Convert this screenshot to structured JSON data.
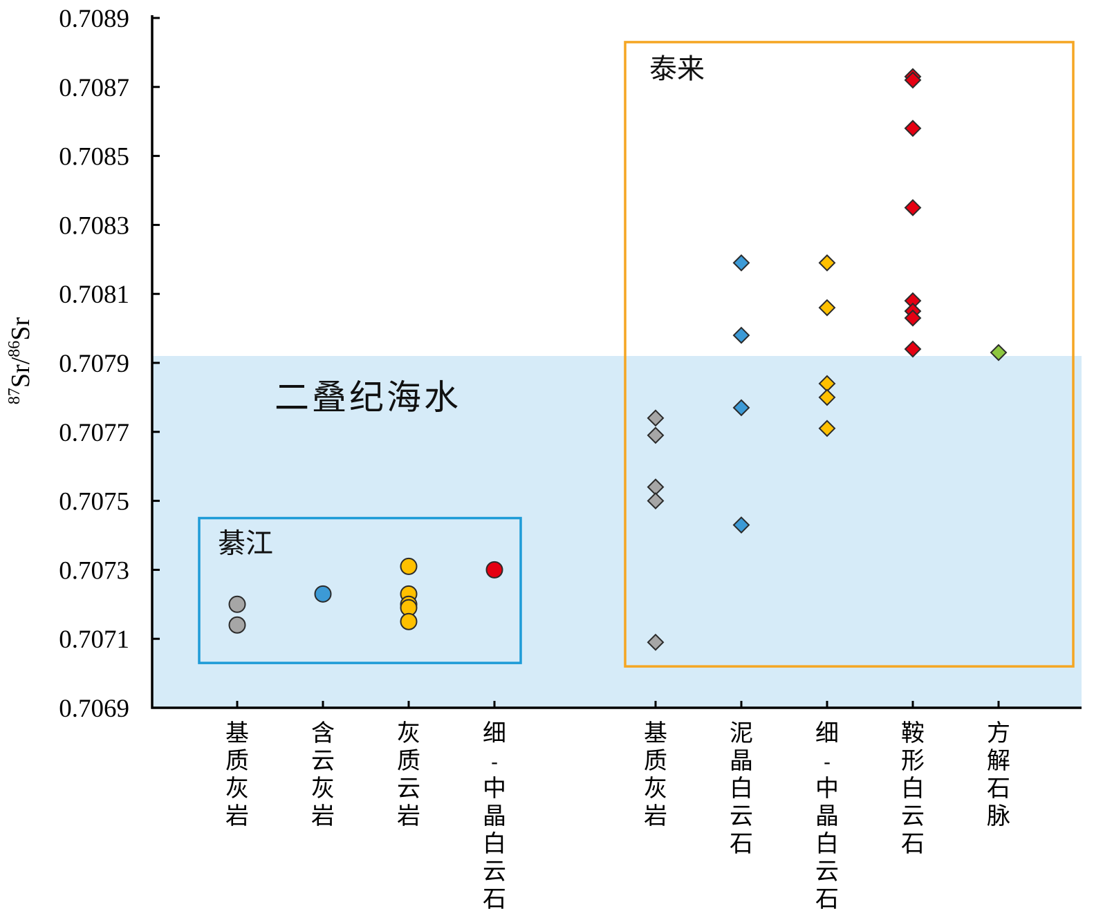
{
  "chart_data": {
    "type": "scatter",
    "ylabel": {
      "pre": "87",
      "mid": "Sr/",
      "sup2": "86",
      "post": "Sr"
    },
    "ylim": [
      0.7069,
      0.7089
    ],
    "yticks": [
      "0.7069",
      "0.7071",
      "0.7073",
      "0.7075",
      "0.7077",
      "0.7079",
      "0.7081",
      "0.7083",
      "0.7085",
      "0.7087",
      "0.7089"
    ],
    "categories": [
      {
        "label": "基质灰岩",
        "group": "綦江"
      },
      {
        "label": "含云灰岩",
        "group": "綦江"
      },
      {
        "label": "灰质云岩",
        "group": "綦江"
      },
      {
        "label": "细-中晶白云石",
        "group": "綦江"
      },
      {
        "label": "基质灰岩",
        "group": "泰来"
      },
      {
        "label": "泥晶白云石",
        "group": "泰来"
      },
      {
        "label": "细-中晶白云石",
        "group": "泰来"
      },
      {
        "label": "鞍形白云石",
        "group": "泰来"
      },
      {
        "label": "方解石脉",
        "group": "泰来"
      }
    ],
    "series": [
      {
        "category": 0,
        "marker": "circle",
        "color": "#a6a6a6",
        "values": [
          0.7072,
          0.70714
        ]
      },
      {
        "category": 1,
        "marker": "circle",
        "color": "#3c9ad6",
        "values": [
          0.70723
        ]
      },
      {
        "category": 2,
        "marker": "circle",
        "color": "#ffc000",
        "values": [
          0.70731,
          0.70723,
          0.7072,
          0.70719,
          0.70715
        ]
      },
      {
        "category": 3,
        "marker": "circle",
        "color": "#e50012",
        "values": [
          0.7073
        ]
      },
      {
        "category": 4,
        "marker": "diamond",
        "color": "#a6a6a6",
        "values": [
          0.70774,
          0.70769,
          0.70754,
          0.7075,
          0.70709
        ]
      },
      {
        "category": 5,
        "marker": "diamond",
        "color": "#3c9ad6",
        "values": [
          0.70819,
          0.70798,
          0.70777,
          0.70743
        ]
      },
      {
        "category": 6,
        "marker": "diamond",
        "color": "#ffc000",
        "values": [
          0.70819,
          0.70806,
          0.70784,
          0.7078,
          0.70771
        ]
      },
      {
        "category": 7,
        "marker": "diamond",
        "color": "#e50012",
        "values": [
          0.70873,
          0.70872,
          0.70858,
          0.70835,
          0.70808,
          0.70805,
          0.70803,
          0.70794
        ]
      },
      {
        "category": 8,
        "marker": "diamond",
        "color": "#8dc63f",
        "values": [
          0.70793
        ]
      }
    ],
    "seawater": {
      "label": "二叠纪海水",
      "ymin": 0.7069,
      "ymax": 0.70792,
      "color": "#d6ebf8"
    },
    "regions": [
      {
        "label": "綦江",
        "categories": [
          0,
          3
        ],
        "ymin": 0.70703,
        "ymax": 0.70745,
        "color": "#1e9bd7"
      },
      {
        "label": "泰来",
        "categories": [
          4,
          8
        ],
        "ymin": 0.70702,
        "ymax": 0.70883,
        "color": "#f5a623"
      }
    ],
    "grid": false
  }
}
